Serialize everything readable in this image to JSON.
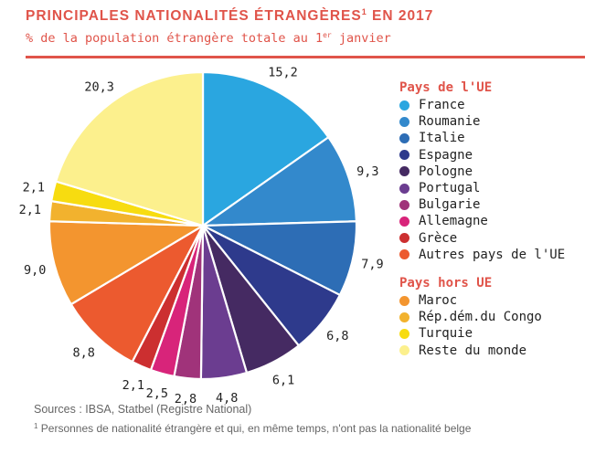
{
  "chart_data": {
    "type": "pie",
    "title": "PRINCIPALES NATIONALITÉS ÉTRANGÈRES",
    "title_note": "1",
    "title_year": "EN 2017",
    "subtitle_pre": "% de la population étrangère totale au 1",
    "subtitle_sup": "er",
    "subtitle_post": " janvier",
    "slices": [
      {
        "label": "France",
        "value": 15.2,
        "display": "15,2",
        "color": "#2aa6e0",
        "group": "eu"
      },
      {
        "label": "Roumanie",
        "value": 9.3,
        "display": "9,3",
        "color": "#3389cc",
        "group": "eu"
      },
      {
        "label": "Italie",
        "value": 7.9,
        "display": "7,9",
        "color": "#2d6db5",
        "group": "eu"
      },
      {
        "label": "Espagne",
        "value": 6.8,
        "display": "6,8",
        "color": "#2e3a8c",
        "group": "eu"
      },
      {
        "label": "Pologne",
        "value": 6.1,
        "display": "6,1",
        "color": "#452a62",
        "group": "eu"
      },
      {
        "label": "Portugal",
        "value": 4.8,
        "display": "4,8",
        "color": "#6b3d90",
        "group": "eu"
      },
      {
        "label": "Bulgarie",
        "value": 2.8,
        "display": "2,8",
        "color": "#a0337a",
        "group": "eu"
      },
      {
        "label": "Allemagne",
        "value": 2.5,
        "display": "2,5",
        "color": "#d8247a",
        "group": "eu"
      },
      {
        "label": "Grèce",
        "value": 2.1,
        "display": "2,1",
        "color": "#cc2f30",
        "group": "eu"
      },
      {
        "label": "Autres pays de l'UE",
        "value": 8.8,
        "display": "8,8",
        "color": "#ec5a2f",
        "group": "eu"
      },
      {
        "label": "Maroc",
        "value": 9.0,
        "display": "9,0",
        "color": "#f3952f",
        "group": "non_eu"
      },
      {
        "label": "Rép.dém.du Congo",
        "value": 2.1,
        "display": "2,1",
        "color": "#f2b22e",
        "group": "non_eu"
      },
      {
        "label": "Turquie",
        "value": 2.1,
        "display": "2,1",
        "color": "#f7dc10",
        "group": "non_eu"
      },
      {
        "label": "Reste du monde",
        "value": 20.3,
        "display": "20,3",
        "color": "#fcf08d",
        "group": "non_eu"
      }
    ],
    "legend": {
      "eu_title": "Pays de l'UE",
      "non_eu_title": "Pays hors UE"
    }
  },
  "footer": {
    "sources": "Sources : IBSA, Statbel (Registre National)",
    "footnote_mark": "1",
    "footnote": " Personnes de nationalité étrangère et qui, en même temps, n'ont pas la nationalité belge"
  }
}
